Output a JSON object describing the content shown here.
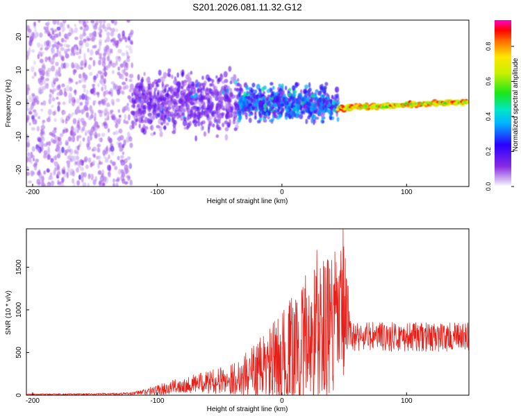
{
  "title": "S201.2026.081.11.32.G12",
  "colors": {
    "bg": "#ffffff",
    "axis": "#000000",
    "snr_line": "#e8201a",
    "spec_low": "#8a2be2"
  },
  "chart_data": [
    {
      "type": "heatmap",
      "name": "spectrogram",
      "xlabel": "Height of straight line (km)",
      "ylabel": "Frequency (Hz)",
      "xlim": [
        -205,
        150
      ],
      "ylim": [
        -25,
        25
      ],
      "xticks": [
        -200,
        -100,
        0,
        100
      ],
      "yticks": [
        -20,
        -10,
        0,
        10,
        20
      ],
      "colorbar": {
        "label": "Normalized spectral amplitude",
        "range": [
          0.0,
          0.95
        ],
        "ticks": [
          0.0,
          0.2,
          0.4,
          0.6,
          0.8
        ]
      },
      "regions": [
        {
          "x_range": [
            -205,
            -120
          ],
          "freq_spread": 25,
          "amplitude": 0.08,
          "note": "diffuse noise"
        },
        {
          "x_range": [
            -120,
            -35
          ],
          "freq_spread": 12,
          "amplitude": 0.15
        },
        {
          "x_range": [
            -35,
            45
          ],
          "freq_spread": 7,
          "amplitude": 0.3
        },
        {
          "x_range": [
            45,
            150
          ],
          "freq_center_start": -1.5,
          "freq_center_end": 0.5,
          "freq_spread": 1.5,
          "amplitude": 0.9,
          "note": "strong carrier line"
        }
      ]
    },
    {
      "type": "line",
      "name": "snr",
      "xlabel": "Height of straight line (km)",
      "ylabel": "SNR (10 * v/v)",
      "xlim": [
        -205,
        150
      ],
      "ylim": [
        0,
        1950
      ],
      "xticks": [
        -200,
        -100,
        0,
        100
      ],
      "yticks": [
        0,
        500,
        1000,
        1500
      ],
      "series": [
        {
          "name": "SNR",
          "envelope_x": [
            -205,
            -150,
            -120,
            -100,
            -80,
            -60,
            -40,
            -20,
            0,
            20,
            30,
            40,
            50,
            55,
            60,
            100,
            150
          ],
          "envelope_mean": [
            10,
            12,
            20,
            60,
            120,
            150,
            190,
            300,
            420,
            650,
            720,
            800,
            900,
            700,
            690,
            680,
            680
          ],
          "envelope_amp": [
            8,
            10,
            15,
            60,
            90,
            130,
            180,
            330,
            550,
            800,
            900,
            850,
            900,
            170,
            180,
            170,
            170
          ],
          "peak_values": [
            {
              "x": 49,
              "y": 1950
            },
            {
              "x": 28,
              "y": 1700
            },
            {
              "x": 40,
              "y": 1580
            },
            {
              "x": 53,
              "y": 1280
            }
          ]
        }
      ]
    }
  ]
}
